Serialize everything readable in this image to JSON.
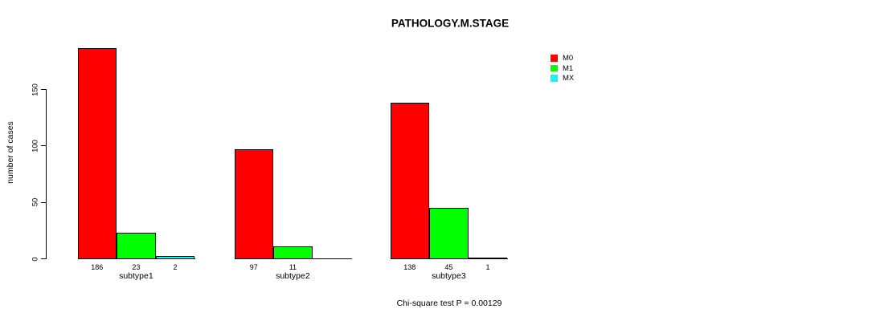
{
  "chart_data": {
    "type": "bar",
    "title": "PATHOLOGY.M.STAGE",
    "ylabel": "number of cases",
    "xlabel": "",
    "footnote": "Chi-square test P = 0.00129",
    "ylim": [
      0,
      150
    ],
    "yticks": [
      0,
      50,
      100,
      150
    ],
    "grid": false,
    "legend_position": "right-outside",
    "categories": [
      "subtype1",
      "subtype2",
      "subtype3"
    ],
    "series": [
      {
        "name": "M0",
        "color": "#ff0000",
        "values": [
          186,
          97,
          138
        ]
      },
      {
        "name": "M1",
        "color": "#00ff00",
        "values": [
          23,
          11,
          45
        ]
      },
      {
        "name": "MX",
        "color": "#00ffff",
        "values": [
          2,
          0,
          1
        ]
      }
    ],
    "bar_value_labels": [
      [
        "186",
        "23",
        "2"
      ],
      [
        "97",
        "11",
        ""
      ],
      [
        "138",
        "45",
        "1"
      ]
    ],
    "bar_border_color": "#000000",
    "axis_color": "#000000"
  }
}
